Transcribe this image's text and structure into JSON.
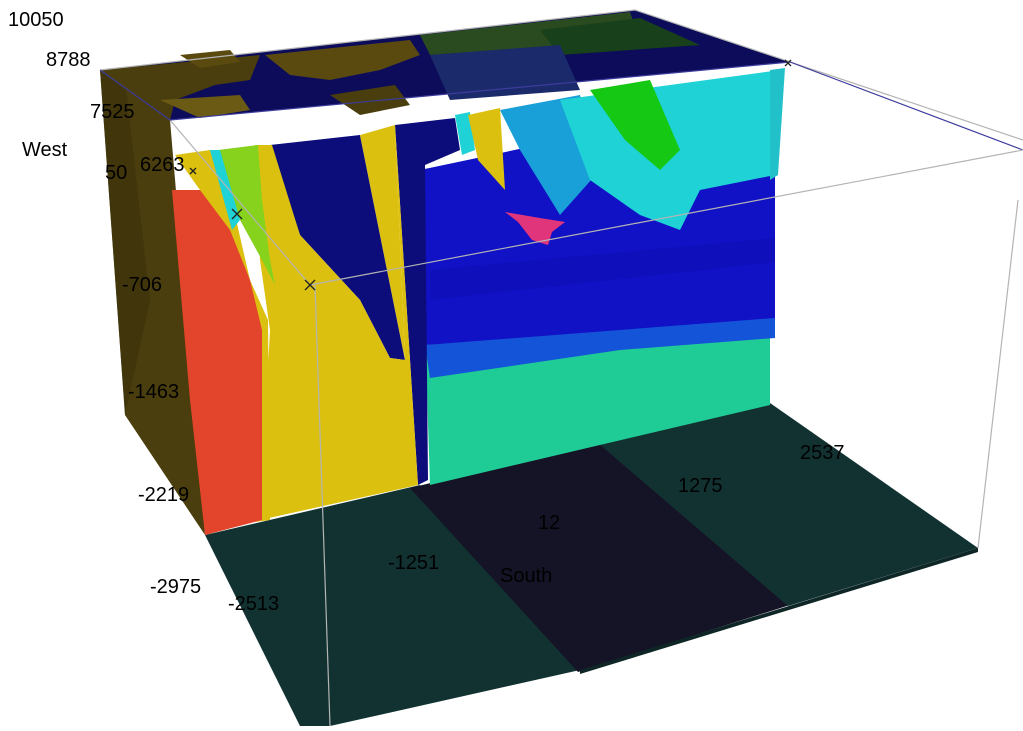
{
  "view": {
    "west_axis": {
      "title": "West",
      "ticks": [
        "10050",
        "8788",
        "7525",
        "6263",
        "50",
        "-706",
        "-1463",
        "-2219",
        "-2975"
      ]
    },
    "south_axis": {
      "title": "South",
      "ticks": [
        "-2513",
        "-1251",
        "12",
        "1275",
        "2537"
      ]
    }
  },
  "colors": {
    "background": "#ffffff",
    "floor_stripe_dark": "#123232",
    "floor_stripe_mid": "#141426",
    "side_face": "#4a3e0e",
    "red": "#e2452b",
    "yellow": "#dcc010",
    "lime": "#86d21c",
    "navy": "#0c0c7a",
    "blue": "#1111c6",
    "mid_blue": "#1454d8",
    "teal": "#20cc96",
    "cyan": "#1ed2d6",
    "sky": "#1aa0d8",
    "green": "#14c814",
    "magenta": "#e0357a",
    "box_edge": "#b4b4b4",
    "box_edge_top": "#3c3c9c"
  }
}
